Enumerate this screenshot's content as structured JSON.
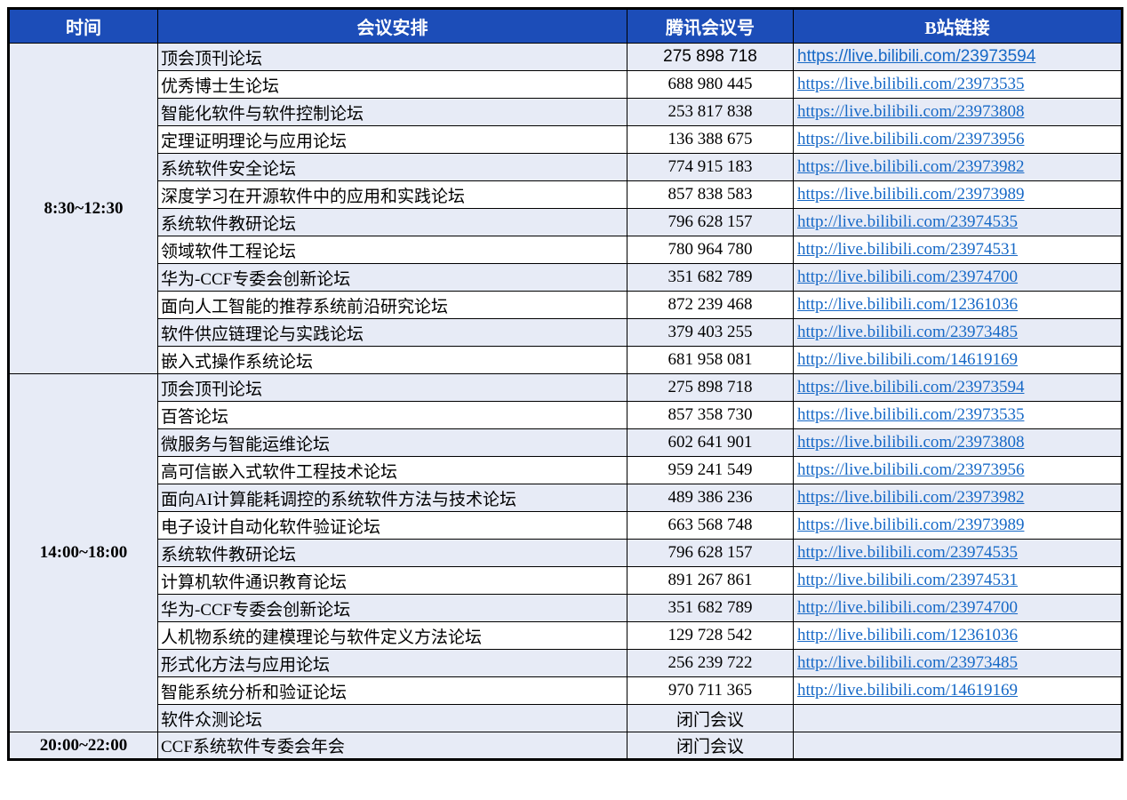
{
  "table": {
    "title_semantic": "conference-live-schedule",
    "colors": {
      "header_bg": "#1C4DB8",
      "header_text": "#FFFFFF",
      "stripe_row_bg": "#E7EBF6",
      "plain_row_bg": "#FFFFFF",
      "link_color": "#1668C6",
      "border_color": "#000000",
      "body_text": "#000000"
    },
    "headers": [
      "时间",
      "会议安排",
      "腾讯会议号",
      "B站链接"
    ],
    "blocks": [
      {
        "time": "8:30~12:30",
        "rows": [
          {
            "forum": "顶会顶刊论坛",
            "meeting_id": "275 898 718",
            "link": "https://live.bilibili.com/23973594",
            "font": "sans"
          },
          {
            "forum": "优秀博士生论坛",
            "meeting_id": "688 980 445",
            "link": "https://live.bilibili.com/23973535",
            "font": "serif"
          },
          {
            "forum": "智能化软件与软件控制论坛",
            "meeting_id": "253 817 838",
            "link": "https://live.bilibili.com/23973808",
            "font": "serif"
          },
          {
            "forum": "定理证明理论与应用论坛",
            "meeting_id": "136 388 675",
            "link": "https://live.bilibili.com/23973956",
            "font": "serif"
          },
          {
            "forum": "系统软件安全论坛",
            "meeting_id": "774 915 183",
            "link": "https://live.bilibili.com/23973982",
            "font": "serif"
          },
          {
            "forum": "深度学习在开源软件中的应用和实践论坛",
            "meeting_id": "857 838 583",
            "link": "https://live.bilibili.com/23973989",
            "font": "serif"
          },
          {
            "forum": "系统软件教研论坛",
            "meeting_id": "796 628 157",
            "link": "http://live.bilibili.com/23974535",
            "font": "serif"
          },
          {
            "forum": "领域软件工程论坛",
            "meeting_id": "780 964 780",
            "link": "http://live.bilibili.com/23974531",
            "font": "serif"
          },
          {
            "forum": "华为-CCF专委会创新论坛",
            "meeting_id": "351 682 789",
            "link": "http://live.bilibili.com/23974700",
            "font": "serif"
          },
          {
            "forum": "面向人工智能的推荐系统前沿研究论坛",
            "meeting_id": "872 239 468",
            "link": "http://live.bilibili.com/12361036",
            "font": "serif"
          },
          {
            "forum": "软件供应链理论与实践论坛",
            "meeting_id": "379 403 255",
            "link": "http://live.bilibili.com/23973485",
            "font": "serif"
          },
          {
            "forum": "嵌入式操作系统论坛",
            "meeting_id": "681 958 081",
            "link": "http://live.bilibili.com/14619169",
            "font": "serif"
          }
        ]
      },
      {
        "time": "14:00~18:00",
        "rows": [
          {
            "forum": "顶会顶刊论坛",
            "meeting_id": "275 898 718",
            "link": "https://live.bilibili.com/23973594",
            "font": "serif"
          },
          {
            "forum": "百答论坛",
            "meeting_id": "857 358 730",
            "link": "https://live.bilibili.com/23973535",
            "font": "serif"
          },
          {
            "forum": "微服务与智能运维论坛",
            "meeting_id": "602 641 901",
            "link": "https://live.bilibili.com/23973808",
            "font": "serif"
          },
          {
            "forum": "高可信嵌入式软件工程技术论坛",
            "meeting_id": "959 241 549",
            "link": "https://live.bilibili.com/23973956",
            "font": "serif"
          },
          {
            "forum": "面向AI计算能耗调控的系统软件方法与技术论坛",
            "meeting_id": "489 386 236",
            "link": "https://live.bilibili.com/23973982",
            "font": "serif"
          },
          {
            "forum": "电子设计自动化软件验证论坛",
            "meeting_id": "663 568 748",
            "link": "https://live.bilibili.com/23973989",
            "font": "serif"
          },
          {
            "forum": "系统软件教研论坛",
            "meeting_id": "796 628 157",
            "link": "http://live.bilibili.com/23974535",
            "font": "serif"
          },
          {
            "forum": "计算机软件通识教育论坛",
            "meeting_id": "891 267 861",
            "link": "http://live.bilibili.com/23974531",
            "font": "serif"
          },
          {
            "forum": "华为-CCF专委会创新论坛",
            "meeting_id": "351 682 789",
            "link": "http://live.bilibili.com/23974700",
            "font": "serif"
          },
          {
            "forum": "人机物系统的建模理论与软件定义方法论坛",
            "meeting_id": "129 728 542",
            "link": "http://live.bilibili.com/12361036",
            "font": "serif"
          },
          {
            "forum": "形式化方法与应用论坛",
            "meeting_id": "256 239 722",
            "link": "http://live.bilibili.com/23973485",
            "font": "serif"
          },
          {
            "forum": "智能系统分析和验证论坛",
            "meeting_id": "970 711 365",
            "link": "http://live.bilibili.com/14619169",
            "font": "serif"
          },
          {
            "forum": "软件众测论坛",
            "meeting_id": "闭门会议",
            "link": "",
            "font": "serif"
          }
        ]
      },
      {
        "time": "20:00~22:00",
        "rows": [
          {
            "forum": "CCF系统软件专委会年会",
            "meeting_id": "闭门会议",
            "link": "",
            "font": "serif"
          }
        ]
      }
    ]
  }
}
